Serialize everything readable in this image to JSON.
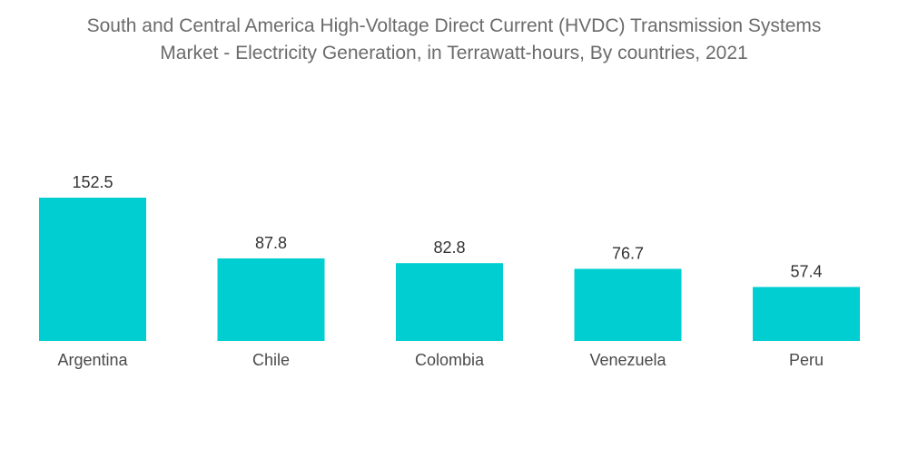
{
  "chart_data": {
    "type": "bar",
    "title_lines": [
      "South and Central America High-Voltage Direct Current (HVDC) Transmission Systems",
      "Market - Electricity Generation, in Terrawatt-hours, By countries, 2021"
    ],
    "categories": [
      "Argentina",
      "Chile",
      "Colombia",
      "Venezuela",
      "Peru"
    ],
    "values": [
      152.5,
      87.8,
      82.8,
      76.7,
      57.4
    ],
    "value_labels": [
      "152.5",
      "87.8",
      "82.8",
      "76.7",
      "57.4"
    ],
    "xlabel": "",
    "ylabel": "",
    "ylim": [
      0,
      152.5
    ],
    "grid": false,
    "legend": "none",
    "bar_color": "#00CED1"
  }
}
